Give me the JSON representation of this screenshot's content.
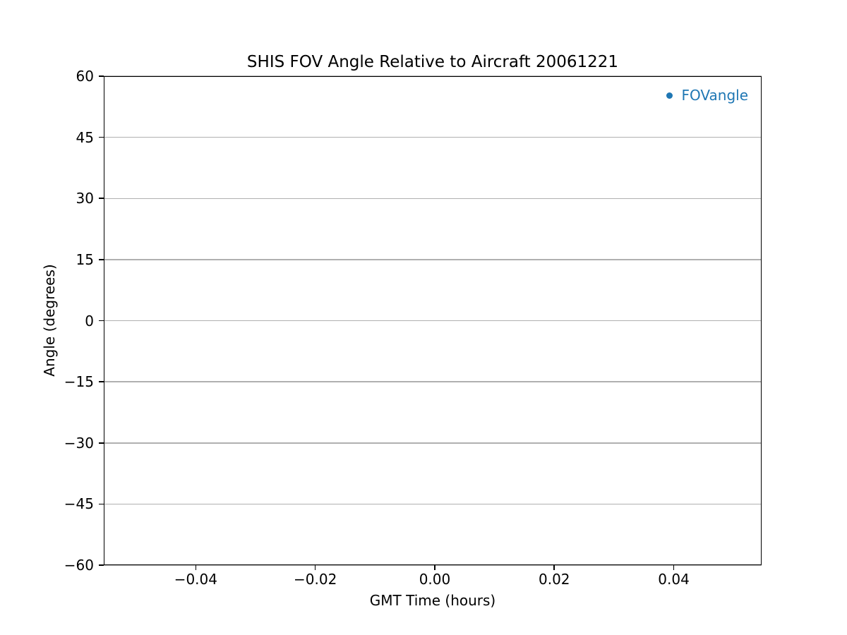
{
  "chart_data": {
    "type": "scatter",
    "title": "SHIS FOV Angle Relative to Aircraft 20061221",
    "xlabel": "GMT Time (hours)",
    "ylabel": "Angle (degrees)",
    "xlim": [
      -0.0554,
      0.0547
    ],
    "ylim": [
      -60,
      60
    ],
    "xticks": {
      "values": [
        -0.04,
        -0.02,
        0.0,
        0.02,
        0.04
      ],
      "labels": [
        "−0.04",
        "−0.02",
        "0.00",
        "0.02",
        "0.04"
      ]
    },
    "yticks": {
      "values": [
        60,
        45,
        30,
        15,
        0,
        -15,
        -30,
        -45,
        -60
      ],
      "labels": [
        "60",
        "45",
        "30",
        "15",
        "0",
        "−15",
        "−30",
        "−45",
        "−60"
      ]
    },
    "grid": {
      "horizontal": true,
      "vertical": false
    },
    "legend": {
      "position": "upper right",
      "frame": false,
      "entries": [
        {
          "label": "FOVangle",
          "marker": "circle",
          "color": "#1f77b4"
        }
      ]
    },
    "series": [
      {
        "name": "FOVangle",
        "marker": "circle",
        "color": "#1f77b4",
        "x": [],
        "y": []
      }
    ],
    "colors": {
      "background": "#ffffff",
      "grid": "#b0b0b0",
      "spine": "#000000",
      "text": "#000000",
      "legend_text": "#1f77b4"
    }
  }
}
